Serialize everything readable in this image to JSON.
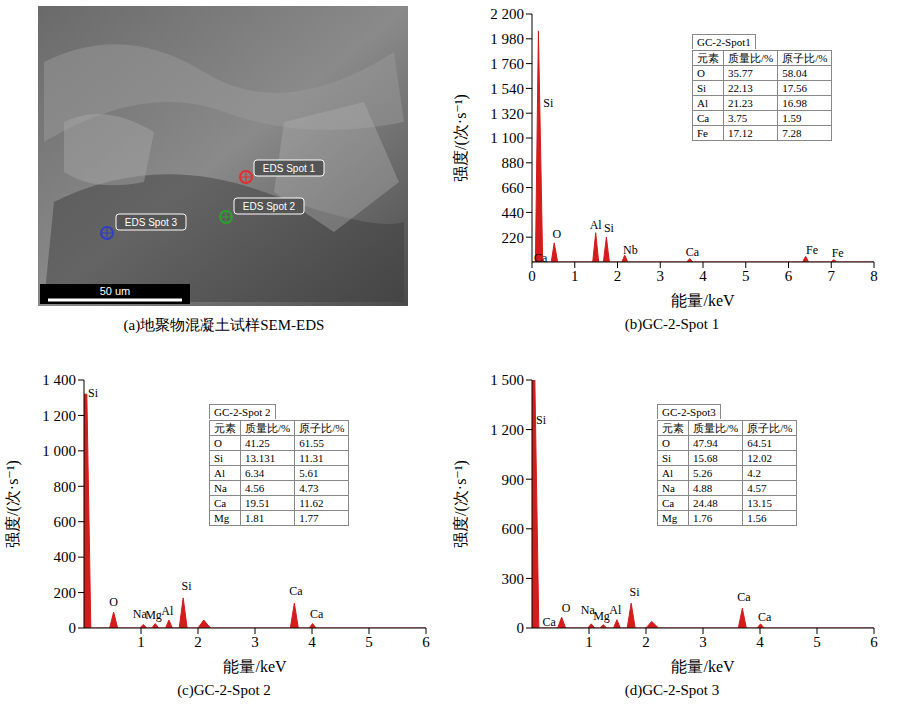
{
  "image": {
    "caption": "(a)地聚物混凝土试样SEM-EDS",
    "spots": [
      {
        "label": "EDS Spot 1",
        "color": "#e03030"
      },
      {
        "label": "EDS Spot 2",
        "color": "#2ca02c"
      },
      {
        "label": "EDS Spot 3",
        "color": "#3040c0"
      }
    ],
    "scale_bar": "50 um"
  },
  "chart_data": [
    {
      "type": "area",
      "title": "(b)GC-2-Spot 1",
      "xlabel": "能量/keV",
      "ylabel": "强度/(次·s⁻¹)",
      "color": "#d41c1c",
      "grid": false,
      "x": [
        0,
        0.08,
        0.15,
        0.25,
        0.45,
        0.52,
        0.6,
        1.42,
        1.49,
        1.56,
        1.67,
        1.74,
        1.81,
        2.1,
        2.17,
        2.24,
        3.62,
        3.69,
        3.76,
        6.33,
        6.4,
        6.47,
        6.99,
        7.06,
        7.13,
        8
      ],
      "values": [
        0,
        0,
        2050,
        0,
        0,
        170,
        0,
        0,
        260,
        0,
        0,
        220,
        0,
        0,
        60,
        0,
        0,
        30,
        0,
        0,
        50,
        0,
        0,
        20,
        0,
        0
      ],
      "xlim": [
        0,
        8
      ],
      "xticks": [
        0,
        1,
        2,
        3,
        4,
        5,
        6,
        7,
        8
      ],
      "ylim": [
        0,
        2200
      ],
      "yticks": [
        220,
        440,
        660,
        880,
        {
          "value": 1100,
          "label": "1 100"
        },
        {
          "value": 1320,
          "label": "1 320"
        },
        {
          "value": 1540,
          "label": "1 540"
        },
        {
          "value": 1760,
          "label": "1 760"
        },
        {
          "value": 1980,
          "label": "1 980"
        },
        {
          "value": 2200,
          "label": "2 200"
        }
      ],
      "annotations": [
        {
          "text": "Si",
          "x": 0.38,
          "y": 1410
        },
        {
          "text": "Ca",
          "x": 0.2,
          "y": 40
        },
        {
          "text": "O",
          "x": 0.58,
          "y": 250
        },
        {
          "text": "Al",
          "x": 1.49,
          "y": 330
        },
        {
          "text": "Si",
          "x": 1.8,
          "y": 300
        },
        {
          "text": "Nb",
          "x": 2.3,
          "y": 110
        },
        {
          "text": "Ca",
          "x": 3.75,
          "y": 90
        },
        {
          "text": "Fe",
          "x": 6.55,
          "y": 110
        },
        {
          "text": "Fe",
          "x": 7.15,
          "y": 80
        }
      ],
      "table": {
        "title": "GC-2-Spot1",
        "columns": [
          "元素",
          "质量比/%",
          "原子比/%"
        ],
        "rows": [
          [
            "O",
            35.77,
            58.04
          ],
          [
            "Si",
            22.13,
            17.56
          ],
          [
            "Al",
            21.23,
            16.98
          ],
          [
            "Ca",
            3.75,
            1.59
          ],
          [
            "Fe",
            17.12,
            7.28
          ]
        ]
      }
    },
    {
      "type": "area",
      "title": "(c)GC-2-Spot 2",
      "xlabel": "能量/keV",
      "ylabel": "强度/(次·s⁻¹)",
      "color": "#d41c1c",
      "grid": false,
      "x": [
        0,
        0.05,
        0.12,
        0.45,
        0.52,
        0.59,
        0.98,
        1.04,
        1.1,
        1.19,
        1.25,
        1.31,
        1.43,
        1.49,
        1.55,
        1.67,
        1.74,
        1.81,
        2.0,
        2.1,
        2.22,
        3.62,
        3.69,
        3.76,
        3.95,
        4.01,
        4.07,
        6
      ],
      "values": [
        1320,
        1320,
        0,
        0,
        90,
        0,
        0,
        20,
        0,
        0,
        25,
        0,
        0,
        45,
        0,
        0,
        170,
        0,
        0,
        45,
        0,
        0,
        140,
        0,
        0,
        25,
        0,
        0
      ],
      "xlim": [
        0,
        6
      ],
      "xticks": [
        1,
        2,
        3,
        4,
        5,
        6
      ],
      "ylim": [
        0,
        1400
      ],
      "yticks": [
        0,
        200,
        400,
        600,
        800,
        {
          "value": 1000,
          "label": "1 000"
        },
        {
          "value": 1200,
          "label": "1 200"
        },
        {
          "value": 1400,
          "label": "1 400"
        }
      ],
      "annotations": [
        {
          "text": "Si",
          "x": 0.16,
          "y": 1330
        },
        {
          "text": "O",
          "x": 0.52,
          "y": 150
        },
        {
          "text": "Na",
          "x": 0.98,
          "y": 80
        },
        {
          "text": "Mg",
          "x": 1.22,
          "y": 75
        },
        {
          "text": "Al",
          "x": 1.46,
          "y": 100
        },
        {
          "text": "Si",
          "x": 1.8,
          "y": 240
        },
        {
          "text": "Ca",
          "x": 3.72,
          "y": 210
        },
        {
          "text": "Ca",
          "x": 4.08,
          "y": 80
        }
      ],
      "table": {
        "title": "GC-2-Spot 2",
        "columns": [
          "元素",
          "质量比/%",
          "原子比/%"
        ],
        "rows": [
          [
            "O",
            41.25,
            61.55
          ],
          [
            "Si",
            13.131,
            11.31
          ],
          [
            "Al",
            6.34,
            5.61
          ],
          [
            "Na",
            4.56,
            4.73
          ],
          [
            "Ca",
            19.51,
            11.62
          ],
          [
            "Mg",
            1.81,
            1.77
          ]
        ]
      }
    },
    {
      "type": "area",
      "title": "(d)GC-2-Spot 3",
      "xlabel": "能量/keV",
      "ylabel": "强度/(次·s⁻¹)",
      "color": "#d41c1c",
      "grid": false,
      "x": [
        0,
        0.05,
        0.12,
        0.45,
        0.52,
        0.59,
        0.98,
        1.04,
        1.1,
        1.19,
        1.25,
        1.31,
        1.43,
        1.49,
        1.55,
        1.67,
        1.74,
        1.81,
        2.0,
        2.1,
        2.22,
        3.62,
        3.69,
        3.76,
        3.95,
        4.01,
        4.07,
        6
      ],
      "values": [
        1500,
        1500,
        0,
        0,
        65,
        0,
        0,
        25,
        0,
        0,
        20,
        0,
        0,
        50,
        0,
        0,
        150,
        0,
        0,
        40,
        0,
        0,
        120,
        0,
        0,
        25,
        0,
        0
      ],
      "xlim": [
        0,
        6
      ],
      "xticks": [
        1,
        2,
        3,
        4,
        5,
        6
      ],
      "ylim": [
        0,
        1500
      ],
      "yticks": [
        0,
        300,
        600,
        900,
        {
          "value": 1200,
          "label": "1 200"
        },
        {
          "value": 1500,
          "label": "1 500"
        }
      ],
      "annotations": [
        {
          "text": "Si",
          "x": 0.16,
          "y": 1260
        },
        {
          "text": "Ca",
          "x": 0.3,
          "y": 40
        },
        {
          "text": "O",
          "x": 0.6,
          "y": 120
        },
        {
          "text": "Na",
          "x": 0.98,
          "y": 110
        },
        {
          "text": "Mg",
          "x": 1.22,
          "y": 75
        },
        {
          "text": "Al",
          "x": 1.46,
          "y": 110
        },
        {
          "text": "Si",
          "x": 1.8,
          "y": 220
        },
        {
          "text": "Ca",
          "x": 3.72,
          "y": 190
        },
        {
          "text": "Ca",
          "x": 4.08,
          "y": 70
        }
      ],
      "table": {
        "title": "GC-2-Spot3",
        "columns": [
          "元素",
          "质量比/%",
          "原子比/%"
        ],
        "rows": [
          [
            "O",
            47.94,
            64.51
          ],
          [
            "Si",
            15.68,
            12.02
          ],
          [
            "Al",
            5.26,
            4.2
          ],
          [
            "Na",
            4.88,
            4.57
          ],
          [
            "Ca",
            24.48,
            13.15
          ],
          [
            "Mg",
            1.76,
            1.56
          ]
        ]
      }
    }
  ]
}
